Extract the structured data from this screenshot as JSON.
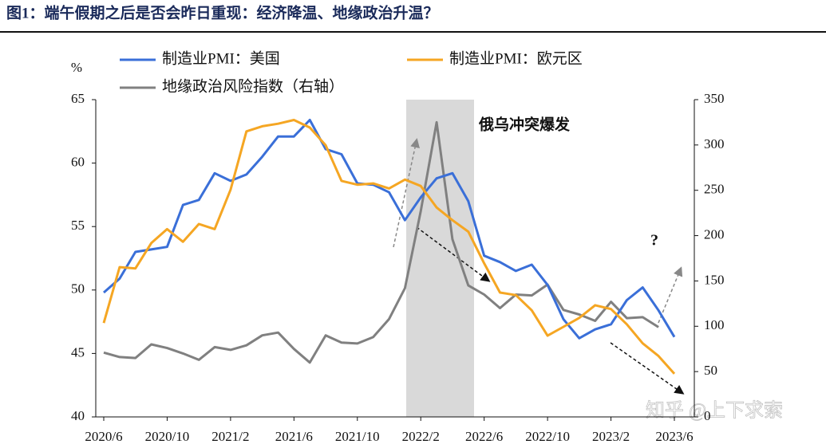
{
  "chart_data": {
    "type": "line",
    "title": "图1：端午假期之后是否会昨日重现：经济降温、地缘政治升温？",
    "y_label": "%",
    "categories": [
      "2020/6",
      null,
      null,
      null,
      "2020/10",
      null,
      null,
      null,
      "2021/2",
      null,
      null,
      null,
      "2021/6",
      null,
      null,
      null,
      "2021/10",
      null,
      null,
      null,
      "2022/2",
      null,
      null,
      null,
      "2022/6",
      null,
      null,
      null,
      "2022/10",
      null,
      null,
      null,
      "2023/2",
      null,
      null,
      null,
      "2023/6"
    ],
    "series": [
      {
        "name": "制造业PMI：美国",
        "color": "#3a6fd8",
        "values": [
          49.8,
          50.9,
          53.0,
          53.2,
          53.4,
          56.7,
          57.1,
          59.2,
          58.6,
          59.1,
          60.5,
          62.1,
          62.1,
          63.4,
          61.1,
          60.7,
          58.4,
          58.3,
          57.7,
          55.5,
          57.3,
          58.8,
          59.2,
          57.0,
          52.7,
          52.2,
          51.5,
          52.0,
          50.4,
          47.7,
          46.2,
          46.9,
          47.3,
          49.2,
          50.2,
          48.4,
          46.3
        ]
      },
      {
        "name": "制造业PMI：欧元区",
        "color": "#f5a623",
        "values": [
          47.4,
          51.8,
          51.7,
          53.7,
          54.8,
          53.8,
          55.2,
          54.8,
          57.9,
          62.5,
          62.9,
          63.1,
          63.4,
          62.8,
          61.4,
          58.6,
          58.3,
          58.4,
          58.0,
          58.7,
          58.2,
          56.5,
          55.5,
          54.6,
          52.1,
          49.8,
          49.6,
          48.4,
          46.4,
          47.1,
          47.8,
          48.8,
          48.5,
          47.3,
          45.8,
          44.8,
          43.4
        ]
      },
      {
        "name": "地缘政治风险指数（右轴）",
        "color": "#808080",
        "axis": "y2",
        "values": [
          71,
          66,
          65,
          80,
          76,
          70,
          63,
          77,
          74,
          79,
          90,
          93,
          75,
          60,
          90,
          82,
          81,
          88,
          108,
          142,
          227,
          325,
          196,
          145,
          135,
          120,
          135,
          134,
          146,
          118,
          113,
          106,
          127,
          109,
          110,
          99,
          null
        ]
      }
    ],
    "ylim": [
      40,
      65
    ],
    "yticks": [
      40,
      45,
      50,
      55,
      60,
      65
    ],
    "y2lim": [
      0,
      350
    ],
    "y2ticks": [
      0,
      50,
      100,
      150,
      200,
      250,
      300,
      350
    ],
    "annotations": [
      "俄乌冲突爆发",
      "?"
    ],
    "watermark": "知乎 @上下求索"
  }
}
